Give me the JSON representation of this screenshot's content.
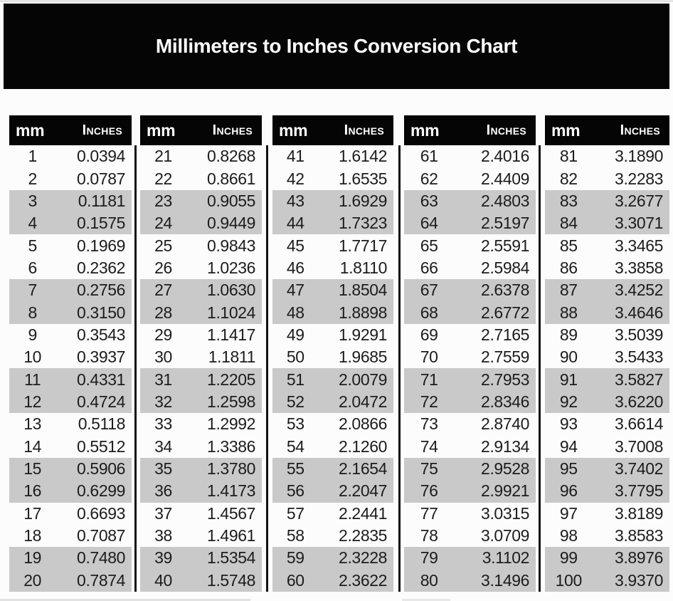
{
  "title": "Millimeters to Inches Conversion Chart",
  "column_headers": {
    "mm": "mm",
    "inches": "Inches"
  },
  "colors": {
    "banner_bg": "#050505",
    "table_header_bg": "#050505",
    "header_text": "#ffffff",
    "row_bg": "#fcfcfc",
    "row_alt_bg": "#c9c9c9",
    "divider": "#121212",
    "value_text": "#1c1c1c"
  },
  "chart_data": {
    "type": "table",
    "title": "Millimeters to Inches Conversion Chart",
    "columns": [
      "mm",
      "Inches"
    ],
    "row_shading_pattern": "pairs of rows alternate white, gray",
    "tables": [
      {
        "mm_range": "1-20",
        "rows": [
          [
            "1",
            "0.0394"
          ],
          [
            "2",
            "0.0787"
          ],
          [
            "3",
            "0.1181"
          ],
          [
            "4",
            "0.1575"
          ],
          [
            "5",
            "0.1969"
          ],
          [
            "6",
            "0.2362"
          ],
          [
            "7",
            "0.2756"
          ],
          [
            "8",
            "0.3150"
          ],
          [
            "9",
            "0.3543"
          ],
          [
            "10",
            "0.3937"
          ],
          [
            "11",
            "0.4331"
          ],
          [
            "12",
            "0.4724"
          ],
          [
            "13",
            "0.5118"
          ],
          [
            "14",
            "0.5512"
          ],
          [
            "15",
            "0.5906"
          ],
          [
            "16",
            "0.6299"
          ],
          [
            "17",
            "0.6693"
          ],
          [
            "18",
            "0.7087"
          ],
          [
            "19",
            "0.7480"
          ],
          [
            "20",
            "0.7874"
          ]
        ]
      },
      {
        "mm_range": "21-40",
        "rows": [
          [
            "21",
            "0.8268"
          ],
          [
            "22",
            "0.8661"
          ],
          [
            "23",
            "0.9055"
          ],
          [
            "24",
            "0.9449"
          ],
          [
            "25",
            "0.9843"
          ],
          [
            "26",
            "1.0236"
          ],
          [
            "27",
            "1.0630"
          ],
          [
            "28",
            "1.1024"
          ],
          [
            "29",
            "1.1417"
          ],
          [
            "30",
            "1.1811"
          ],
          [
            "31",
            "1.2205"
          ],
          [
            "32",
            "1.2598"
          ],
          [
            "33",
            "1.2992"
          ],
          [
            "34",
            "1.3386"
          ],
          [
            "35",
            "1.3780"
          ],
          [
            "36",
            "1.4173"
          ],
          [
            "37",
            "1.4567"
          ],
          [
            "38",
            "1.4961"
          ],
          [
            "39",
            "1.5354"
          ],
          [
            "40",
            "1.5748"
          ]
        ]
      },
      {
        "mm_range": "41-60",
        "rows": [
          [
            "41",
            "1.6142"
          ],
          [
            "42",
            "1.6535"
          ],
          [
            "43",
            "1.6929"
          ],
          [
            "44",
            "1.7323"
          ],
          [
            "45",
            "1.7717"
          ],
          [
            "46",
            "1.8110"
          ],
          [
            "47",
            "1.8504"
          ],
          [
            "48",
            "1.8898"
          ],
          [
            "49",
            "1.9291"
          ],
          [
            "50",
            "1.9685"
          ],
          [
            "51",
            "2.0079"
          ],
          [
            "52",
            "2.0472"
          ],
          [
            "53",
            "2.0866"
          ],
          [
            "54",
            "2.1260"
          ],
          [
            "55",
            "2.1654"
          ],
          [
            "56",
            "2.2047"
          ],
          [
            "57",
            "2.2441"
          ],
          [
            "58",
            "2.2835"
          ],
          [
            "59",
            "2.3228"
          ],
          [
            "60",
            "2.3622"
          ]
        ]
      },
      {
        "mm_range": "61-80",
        "rows": [
          [
            "61",
            "2.4016"
          ],
          [
            "62",
            "2.4409"
          ],
          [
            "63",
            "2.4803"
          ],
          [
            "64",
            "2.5197"
          ],
          [
            "65",
            "2.5591"
          ],
          [
            "66",
            "2.5984"
          ],
          [
            "67",
            "2.6378"
          ],
          [
            "68",
            "2.6772"
          ],
          [
            "69",
            "2.7165"
          ],
          [
            "70",
            "2.7559"
          ],
          [
            "71",
            "2.7953"
          ],
          [
            "72",
            "2.8346"
          ],
          [
            "73",
            "2.8740"
          ],
          [
            "74",
            "2.9134"
          ],
          [
            "75",
            "2.9528"
          ],
          [
            "76",
            "2.9921"
          ],
          [
            "77",
            "3.0315"
          ],
          [
            "78",
            "3.0709"
          ],
          [
            "79",
            "3.1102"
          ],
          [
            "80",
            "3.1496"
          ]
        ]
      },
      {
        "mm_range": "81-100",
        "rows": [
          [
            "81",
            "3.1890"
          ],
          [
            "82",
            "3.2283"
          ],
          [
            "83",
            "3.2677"
          ],
          [
            "84",
            "3.3071"
          ],
          [
            "85",
            "3.3465"
          ],
          [
            "86",
            "3.3858"
          ],
          [
            "87",
            "3.4252"
          ],
          [
            "88",
            "3.4646"
          ],
          [
            "89",
            "3.5039"
          ],
          [
            "90",
            "3.5433"
          ],
          [
            "91",
            "3.5827"
          ],
          [
            "92",
            "3.6220"
          ],
          [
            "93",
            "3.6614"
          ],
          [
            "94",
            "3.7008"
          ],
          [
            "95",
            "3.7402"
          ],
          [
            "96",
            "3.7795"
          ],
          [
            "97",
            "3.8189"
          ],
          [
            "98",
            "3.8583"
          ],
          [
            "99",
            "3.8976"
          ],
          [
            "100",
            "3.9370"
          ]
        ]
      }
    ]
  }
}
